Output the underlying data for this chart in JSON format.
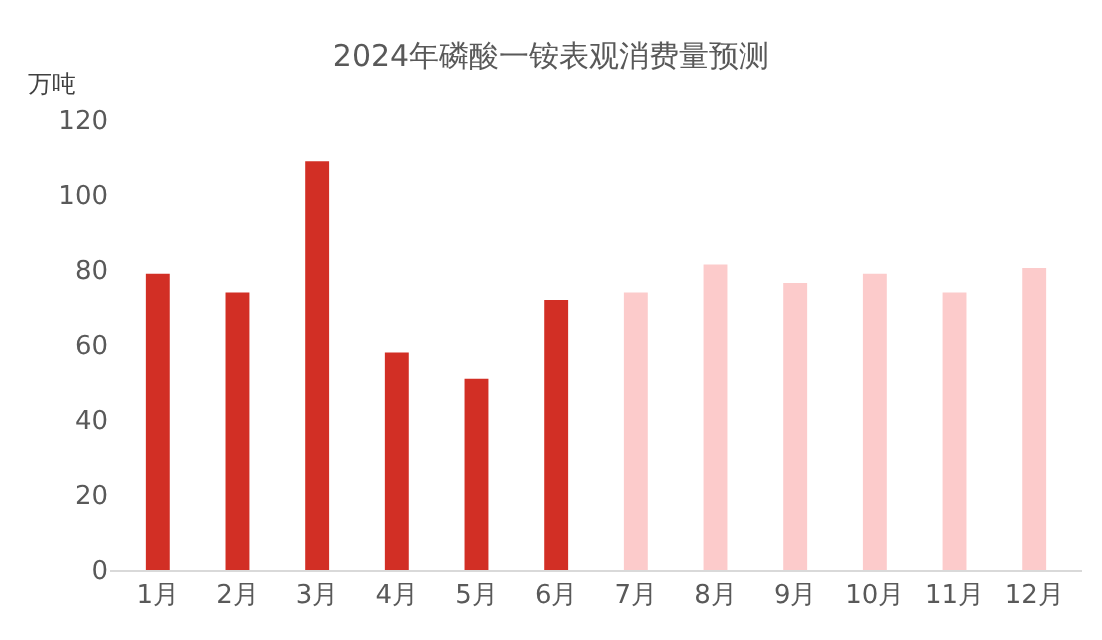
{
  "chart_data": {
    "type": "bar",
    "title": "2024年磷酸一铵表观消费量预测",
    "ylabel": "万吨",
    "categories": [
      "1月",
      "2月",
      "3月",
      "4月",
      "5月",
      "6月",
      "7月",
      "8月",
      "9月",
      "10月",
      "11月",
      "12月"
    ],
    "values": [
      79,
      74,
      109,
      58,
      51,
      72,
      74,
      81.5,
      76.5,
      79,
      74,
      80.5
    ],
    "colors": [
      "#d22f25",
      "#d22f25",
      "#d22f25",
      "#d22f25",
      "#d22f25",
      "#d22f25",
      "#fccbcb",
      "#fccbcb",
      "#fccbcb",
      "#fccbcb",
      "#fccbcb",
      "#fccbcb"
    ],
    "ylim": [
      0,
      120
    ],
    "yticks": [
      0,
      20,
      40,
      60,
      80,
      100,
      120
    ],
    "grid": false
  }
}
